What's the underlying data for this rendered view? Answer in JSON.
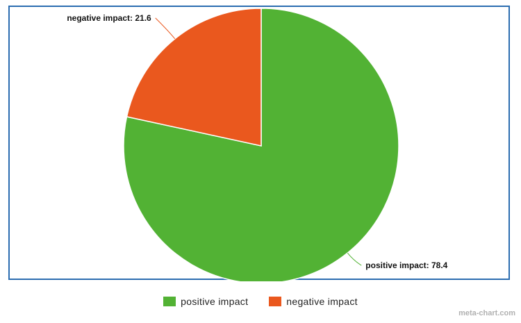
{
  "chart_data": {
    "type": "pie",
    "title": "",
    "series": [
      {
        "name": "positive impact",
        "value": 78.4,
        "color": "#52b234",
        "label": "positive impact: 78.4"
      },
      {
        "name": "negative impact",
        "value": 21.6,
        "color": "#ea581e",
        "label": "negative impact: 21.6"
      }
    ],
    "start_angle": "12 o'clock",
    "direction": "clockwise",
    "legend_position": "bottom-center"
  },
  "legend": {
    "items": [
      {
        "label": "positive impact",
        "color": "#52b234"
      },
      {
        "label": "negative impact",
        "color": "#ea581e"
      }
    ]
  },
  "watermark": "meta-chart.com",
  "colors": {
    "frame_border": "#2a6cb0",
    "connector_positive": "#52b234",
    "connector_negative": "#ea581e"
  }
}
